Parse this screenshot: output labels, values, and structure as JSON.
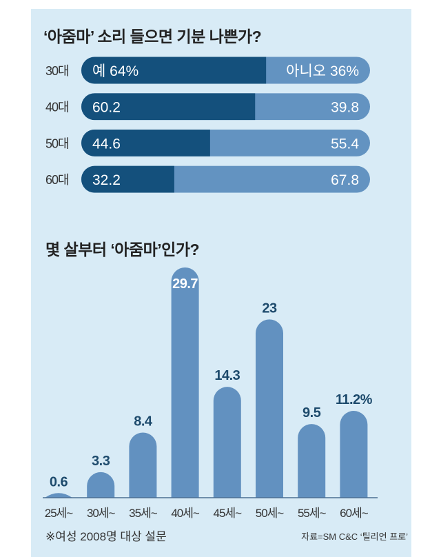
{
  "chart_data": [
    {
      "type": "bar",
      "orientation": "horizontal-stacked",
      "title": "‘아줌마’ 소리 들으면 기분 나쁜가?",
      "categories": [
        "30대",
        "40대",
        "50대",
        "60대"
      ],
      "series": [
        {
          "name": "예",
          "values": [
            64,
            60.2,
            44.6,
            32.2
          ],
          "labels": [
            "예 64%",
            "60.2",
            "44.6",
            "32.2"
          ],
          "color": "#14507c"
        },
        {
          "name": "아니오",
          "values": [
            36,
            39.8,
            55.4,
            67.8
          ],
          "labels": [
            "아니오 36%",
            "39.8",
            "55.4",
            "67.8"
          ],
          "color": "#6393c1"
        }
      ],
      "xlim": [
        0,
        100
      ]
    },
    {
      "type": "bar",
      "title": "몇 살부터 ‘아줌마’인가?",
      "categories": [
        "25세~",
        "30세~",
        "35세~",
        "40세~",
        "45세~",
        "50세~",
        "55세~",
        "60세~"
      ],
      "values": [
        0.6,
        3.3,
        8.4,
        29.7,
        14.3,
        23,
        9.5,
        11.2
      ],
      "labels": [
        "0.6",
        "3.3",
        "8.4",
        "29.7",
        "14.3",
        "23",
        "9.5",
        "11.2%"
      ],
      "color": "#6291c0",
      "ylim": [
        0,
        30
      ]
    }
  ],
  "footer": {
    "note": "※여성 2008명 대상 설문",
    "source": "자료=SM C&C ‘틸리언 프로’"
  }
}
